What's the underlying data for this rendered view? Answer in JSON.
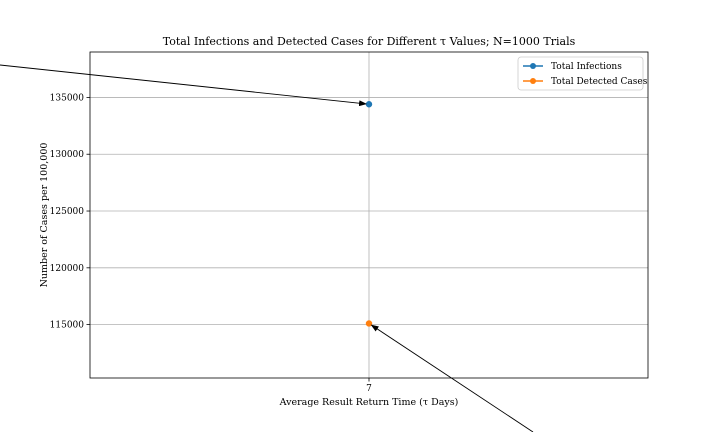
{
  "chart_data": {
    "type": "scatter",
    "title": "Total Infections and Detected Cases for Different τ Values; N=1000 Trials",
    "xlabel": "Average Result Return Time (τ Days)",
    "ylabel": "Number of Cases per 100,000",
    "x": [
      7
    ],
    "xticks": [
      "7"
    ],
    "xlim": [
      6.945,
      7.055
    ],
    "ylim": [
      110300,
      139000
    ],
    "yticks": [
      115000,
      120000,
      125000,
      130000,
      135000
    ],
    "grid": true,
    "legend_position": "top-right",
    "series": [
      {
        "name": "Total Infections",
        "color": "#1f77b4",
        "values": [
          134400
        ]
      },
      {
        "name": "Total Detected Cases",
        "color": "#ff7f0e",
        "values": [
          115100
        ]
      }
    ],
    "annotations": [
      {
        "target_series": "Total Infections",
        "x": 7,
        "y": 134400,
        "text": ""
      },
      {
        "target_series": "Total Detected Cases",
        "x": 7,
        "y": 115100,
        "text": ""
      }
    ]
  }
}
